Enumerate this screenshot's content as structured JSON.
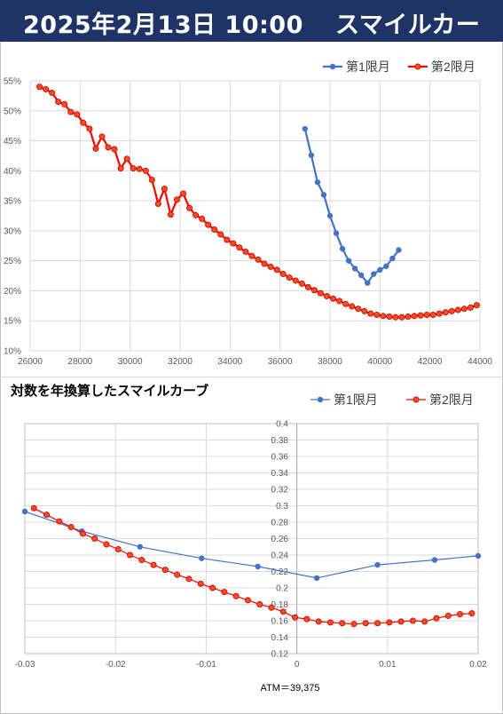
{
  "header": {
    "datetime": "2025年2月13日 10:00",
    "title": "スマイルカーブ"
  },
  "colors": {
    "header_bg": "#1f3466",
    "series1": "#4472c4",
    "series2": "#ff0000",
    "series2_marker_fill": "#ff4b1e"
  },
  "chart_data": [
    {
      "type": "line",
      "title": "",
      "xlabel": "",
      "ylabel": "",
      "x_ticks": [
        "26000",
        "28000",
        "30000",
        "32000",
        "34000",
        "36000",
        "38000",
        "40000",
        "42000",
        "44000"
      ],
      "y_ticks": [
        "10%",
        "15%",
        "20%",
        "25%",
        "30%",
        "35%",
        "40%",
        "45%",
        "50%",
        "55%"
      ],
      "xlim": [
        26000,
        44000
      ],
      "ylim": [
        0.1,
        0.55
      ],
      "grid": true,
      "legend_position": "top-right",
      "series": [
        {
          "name": "第1限月",
          "x": [
            37000,
            37250,
            37500,
            37750,
            38000,
            38250,
            38500,
            38750,
            39000,
            39250,
            39500,
            39750,
            40000,
            40250,
            40500,
            40750
          ],
          "y": [
            0.47,
            0.426,
            0.381,
            0.36,
            0.325,
            0.296,
            0.27,
            0.25,
            0.237,
            0.226,
            0.213,
            0.228,
            0.235,
            0.241,
            0.254,
            0.268
          ]
        },
        {
          "name": "第2限月",
          "x": [
            26375,
            26625,
            26875,
            27125,
            27375,
            27625,
            27875,
            28125,
            28375,
            28625,
            28875,
            29125,
            29375,
            29625,
            29875,
            30125,
            30375,
            30625,
            30875,
            31125,
            31375,
            31625,
            31875,
            32125,
            32375,
            32625,
            32875,
            33125,
            33375,
            33625,
            33875,
            34125,
            34375,
            34625,
            34875,
            35125,
            35375,
            35625,
            35875,
            36125,
            36375,
            36625,
            36875,
            37125,
            37375,
            37625,
            37875,
            38125,
            38375,
            38625,
            38875,
            39125,
            39375,
            39625,
            39875,
            40125,
            40375,
            40625,
            40875,
            41125,
            41375,
            41625,
            41875,
            42125,
            42375,
            42625,
            42875,
            43125,
            43375,
            43625,
            43875
          ],
          "y": [
            0.54,
            0.536,
            0.53,
            0.515,
            0.511,
            0.498,
            0.494,
            0.48,
            0.47,
            0.437,
            0.457,
            0.439,
            0.436,
            0.404,
            0.42,
            0.404,
            0.403,
            0.4,
            0.385,
            0.345,
            0.37,
            0.327,
            0.352,
            0.362,
            0.338,
            0.326,
            0.32,
            0.31,
            0.302,
            0.294,
            0.285,
            0.279,
            0.272,
            0.265,
            0.258,
            0.252,
            0.245,
            0.24,
            0.235,
            0.228,
            0.222,
            0.217,
            0.212,
            0.206,
            0.201,
            0.196,
            0.191,
            0.187,
            0.183,
            0.178,
            0.174,
            0.17,
            0.166,
            0.162,
            0.16,
            0.158,
            0.157,
            0.156,
            0.156,
            0.157,
            0.158,
            0.159,
            0.16,
            0.16,
            0.162,
            0.164,
            0.166,
            0.168,
            0.17,
            0.172,
            0.176
          ]
        }
      ]
    },
    {
      "type": "line",
      "title": "対数を年換算したスマイルカーブ",
      "xlabel": "ATM＝39,375",
      "ylabel": "",
      "x_ticks": [
        "-0.03",
        "-0.02",
        "-0.01",
        "0",
        "0.01",
        "0.02"
      ],
      "y_ticks": [
        "0.12",
        "0.14",
        "0.16",
        "0.18",
        "0.2",
        "0.22",
        "0.24",
        "0.26",
        "0.28",
        "0.3",
        "0.32",
        "0.34",
        "0.36",
        "0.38",
        "0.4"
      ],
      "xlim": [
        -0.03,
        0.02
      ],
      "ylim": [
        0.12,
        0.4
      ],
      "grid": true,
      "legend_position": "top-right",
      "series": [
        {
          "name": "第1限月",
          "x": [
            -0.03,
            -0.0237,
            -0.0173,
            -0.0105,
            -0.0043,
            0.0022,
            0.0089,
            0.0152,
            0.02
          ],
          "y": [
            0.293,
            0.269,
            0.25,
            0.236,
            0.226,
            0.212,
            0.228,
            0.234,
            0.239
          ]
        },
        {
          "name": "第2限月",
          "x": [
            -0.029,
            -0.0276,
            -0.0262,
            -0.0249,
            -0.0236,
            -0.0223,
            -0.021,
            -0.0197,
            -0.0184,
            -0.0171,
            -0.0158,
            -0.0145,
            -0.0132,
            -0.0119,
            -0.0106,
            -0.0093,
            -0.008,
            -0.0067,
            -0.0054,
            -0.0041,
            -0.0028,
            -0.0015,
            -0.0002,
            0.0011,
            0.0024,
            0.0037,
            0.005,
            0.0063,
            0.0076,
            0.0089,
            0.0102,
            0.0115,
            0.0128,
            0.0141,
            0.0154,
            0.0167,
            0.018,
            0.0193
          ],
          "y": [
            0.297,
            0.289,
            0.281,
            0.274,
            0.266,
            0.26,
            0.253,
            0.247,
            0.24,
            0.234,
            0.228,
            0.222,
            0.216,
            0.211,
            0.205,
            0.2,
            0.195,
            0.19,
            0.185,
            0.18,
            0.176,
            0.171,
            0.164,
            0.162,
            0.159,
            0.158,
            0.157,
            0.156,
            0.157,
            0.157,
            0.158,
            0.159,
            0.16,
            0.159,
            0.163,
            0.166,
            0.168,
            0.169
          ]
        }
      ]
    }
  ]
}
